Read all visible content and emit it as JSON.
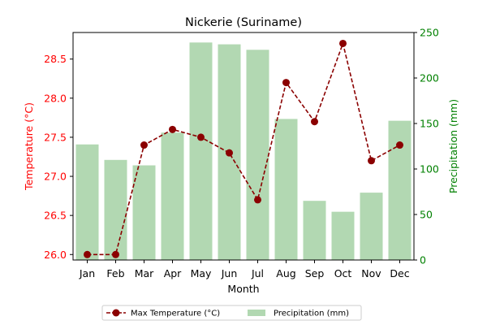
{
  "chart_data": {
    "type": "bar+line",
    "title": "Nickerie (Suriname)",
    "xlabel": "Month",
    "ylabel_left": "Temperature (°C)",
    "ylabel_right": "Precipitation (mm)",
    "categories": [
      "Jan",
      "Feb",
      "Mar",
      "Apr",
      "May",
      "Jun",
      "Jul",
      "Aug",
      "Sep",
      "Oct",
      "Nov",
      "Dec"
    ],
    "series": [
      {
        "name": "Max Temperature (°C)",
        "kind": "line",
        "axis": "left",
        "color": "#8b0000",
        "values": [
          26.0,
          26.0,
          27.4,
          27.6,
          27.5,
          27.3,
          26.7,
          28.2,
          27.7,
          28.7,
          27.2,
          27.4
        ]
      },
      {
        "name": "Precipitation (mm)",
        "kind": "bar",
        "axis": "right",
        "color": "#b2d8b2",
        "values": [
          127,
          110,
          104,
          140,
          239,
          237,
          231,
          155,
          65,
          53,
          74,
          153
        ]
      }
    ],
    "ylim_left": [
      25.93,
      28.84
    ],
    "ylim_right": [
      0,
      250
    ],
    "left_ticks": [
      "26.0",
      "26.5",
      "27.0",
      "27.5",
      "28.0",
      "28.5"
    ],
    "right_ticks": [
      "0",
      "50",
      "100",
      "150",
      "200",
      "250"
    ],
    "left_axis_color": "#ff0000",
    "right_axis_color": "#008000",
    "grid": false,
    "legend_position": "bottom-center"
  }
}
